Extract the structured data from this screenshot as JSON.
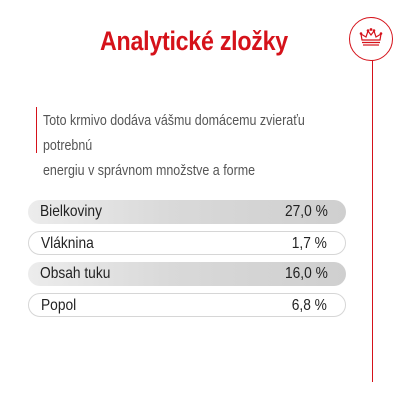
{
  "header": {
    "title": "Analytické zložky",
    "logo_icon": "crown-icon"
  },
  "intro": {
    "text": "Toto krmivo dodáva vášmu domácemu zvieraťu potrebnú\nenergiu v správnom množstve a forme"
  },
  "composition": {
    "rows": [
      {
        "label": "Bielkoviny",
        "value": "27,0 %"
      },
      {
        "label": "Vláknina",
        "value": "1,7 %"
      },
      {
        "label": "Obsah tuku",
        "value": "16,0 %"
      },
      {
        "label": "Popol",
        "value": "6,8 %"
      }
    ]
  },
  "colors": {
    "accent": "#d5121a",
    "shaded_row": "#d9d9d9",
    "text": "#222222"
  }
}
